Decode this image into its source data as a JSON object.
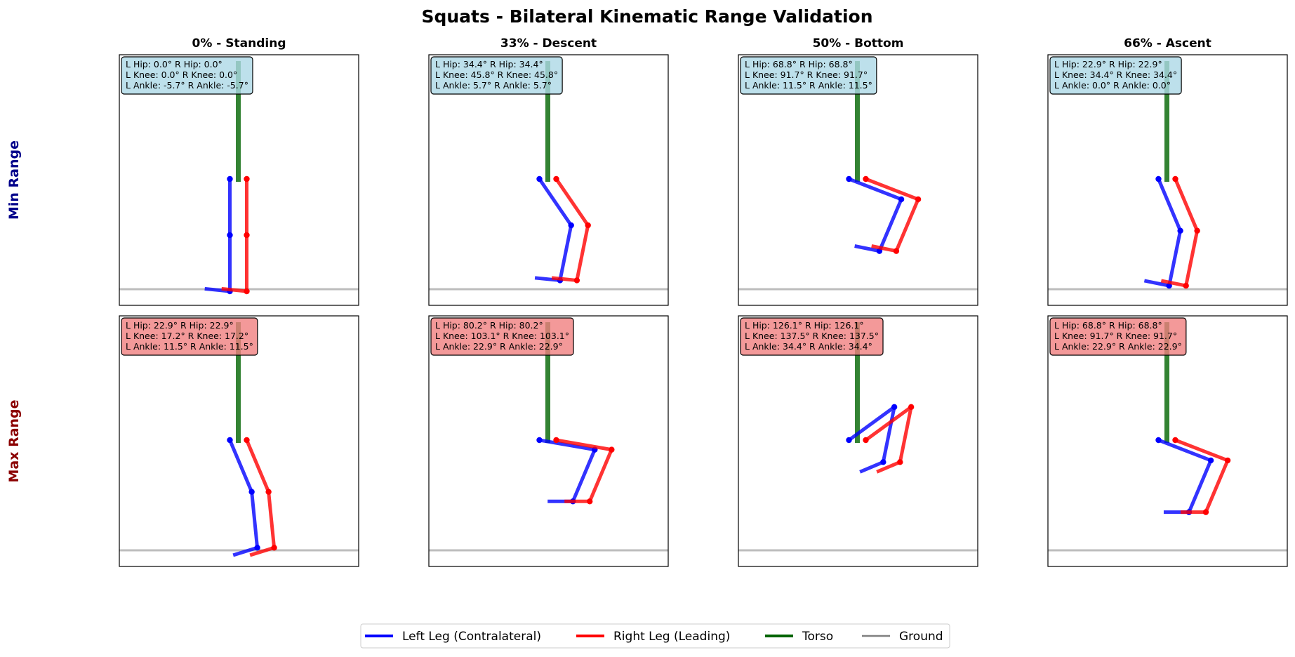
{
  "title": "Squats - Bilateral Kinematic Range Validation",
  "columns": [
    "0% - Standing",
    "33% - Descent",
    "50% - Bottom",
    "66% - Ascent"
  ],
  "rows": [
    {
      "label": "Min Range",
      "color": "#00008b",
      "box_color": "#add8e6"
    },
    {
      "label": "Max Range",
      "color": "#8b0000",
      "box_color": "#f08080"
    }
  ],
  "colors": {
    "left_leg": "#0000ff",
    "right_leg": "#ff0000",
    "torso": "#006400",
    "ground": "#808080"
  },
  "legend": [
    {
      "key": "left_leg",
      "label": "Left Leg (Contralateral)"
    },
    {
      "key": "right_leg",
      "label": "Right Leg (Leading)"
    },
    {
      "key": "torso",
      "label": "Torso"
    },
    {
      "key": "ground",
      "label": "Ground"
    }
  ],
  "chart_data": {
    "type": "diagram",
    "description_units": "degrees",
    "panels": [
      {
        "row": 0,
        "col": 0,
        "annotation": [
          "L Hip: 0.0°  R Hip: 0.0°",
          "L Knee: 0.0°  R Knee: 0.0°",
          "L Ankle: -5.7°  R Ankle: -5.7°"
        ],
        "angles": {
          "l_hip": 0.0,
          "r_hip": 0.0,
          "l_knee": 0.0,
          "r_knee": 0.0,
          "l_ankle": -5.7,
          "r_ankle": -5.7
        }
      },
      {
        "row": 0,
        "col": 1,
        "annotation": [
          "L Hip: 34.4°  R Hip: 34.4°",
          "L Knee: 45.8°  R Knee: 45.8°",
          "L Ankle: 5.7°  R Ankle: 5.7°"
        ],
        "angles": {
          "l_hip": 34.4,
          "r_hip": 34.4,
          "l_knee": 45.8,
          "r_knee": 45.8,
          "l_ankle": 5.7,
          "r_ankle": 5.7
        }
      },
      {
        "row": 0,
        "col": 2,
        "annotation": [
          "L Hip: 68.8°  R Hip: 68.8°",
          "L Knee: 91.7°  R Knee: 91.7°",
          "L Ankle: 11.5°  R Ankle: 11.5°"
        ],
        "angles": {
          "l_hip": 68.8,
          "r_hip": 68.8,
          "l_knee": 91.7,
          "r_knee": 91.7,
          "l_ankle": 11.5,
          "r_ankle": 11.5
        }
      },
      {
        "row": 0,
        "col": 3,
        "annotation": [
          "L Hip: 22.9°  R Hip: 22.9°",
          "L Knee: 34.4°  R Knee: 34.4°",
          "L Ankle: 0.0°  R Ankle: 0.0°"
        ],
        "angles": {
          "l_hip": 22.9,
          "r_hip": 22.9,
          "l_knee": 34.4,
          "r_knee": 34.4,
          "l_ankle": 0.0,
          "r_ankle": 0.0
        }
      },
      {
        "row": 1,
        "col": 0,
        "annotation": [
          "L Hip: 22.9°  R Hip: 22.9°",
          "L Knee: 17.2°  R Knee: 17.2°",
          "L Ankle: 11.5°  R Ankle: 11.5°"
        ],
        "angles": {
          "l_hip": 22.9,
          "r_hip": 22.9,
          "l_knee": 17.2,
          "r_knee": 17.2,
          "l_ankle": 11.5,
          "r_ankle": 11.5
        }
      },
      {
        "row": 1,
        "col": 1,
        "annotation": [
          "L Hip: 80.2°  R Hip: 80.2°",
          "L Knee: 103.1°  R Knee: 103.1°",
          "L Ankle: 22.9°  R Ankle: 22.9°"
        ],
        "angles": {
          "l_hip": 80.2,
          "r_hip": 80.2,
          "l_knee": 103.1,
          "r_knee": 103.1,
          "l_ankle": 22.9,
          "r_ankle": 22.9
        }
      },
      {
        "row": 1,
        "col": 2,
        "annotation": [
          "L Hip: 126.1°  R Hip: 126.1°",
          "L Knee: 137.5°  R Knee: 137.5°",
          "L Ankle: 34.4°  R Ankle: 34.4°"
        ],
        "angles": {
          "l_hip": 126.1,
          "r_hip": 126.1,
          "l_knee": 137.5,
          "r_knee": 137.5,
          "l_ankle": 34.4,
          "r_ankle": 34.4
        }
      },
      {
        "row": 1,
        "col": 3,
        "annotation": [
          "L Hip: 68.8°  R Hip: 68.8°",
          "L Knee: 91.7°  R Knee: 91.7°",
          "L Ankle: 22.9°  R Ankle: 22.9°"
        ],
        "angles": {
          "l_hip": 68.8,
          "r_hip": 68.8,
          "l_knee": 91.7,
          "r_knee": 91.7,
          "l_ankle": 22.9,
          "r_ankle": 22.9
        }
      }
    ]
  }
}
